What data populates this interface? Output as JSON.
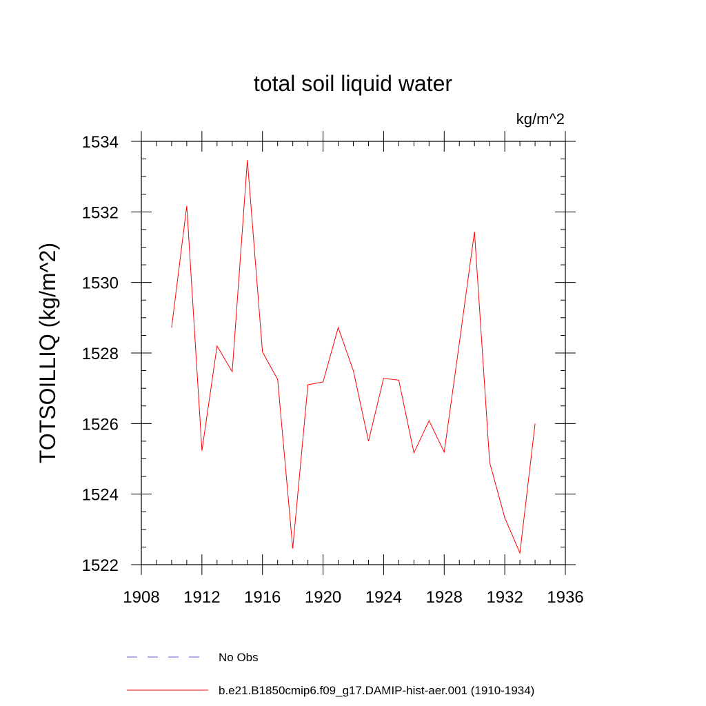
{
  "chart_data": {
    "type": "line",
    "title": "total soil liquid water",
    "units": "kg/m^2",
    "ylabel": "TOTSOILLIQ  (kg/m^2)",
    "xlabel": "",
    "xlim": [
      1908,
      1936
    ],
    "ylim": [
      1522,
      1534
    ],
    "x_ticks": [
      1908,
      1912,
      1916,
      1920,
      1924,
      1928,
      1932,
      1936
    ],
    "y_ticks": [
      1522,
      1524,
      1526,
      1528,
      1530,
      1532,
      1534
    ],
    "x_tick_labels": [
      "1908",
      "1912",
      "1916",
      "1920",
      "1924",
      "1928",
      "1932",
      "1936"
    ],
    "y_tick_labels": [
      "1522",
      "1524",
      "1526",
      "1528",
      "1530",
      "1532",
      "1534"
    ],
    "grid": false,
    "legend": {
      "placement": "bottom",
      "entries": [
        {
          "label": "No Obs",
          "color": "#6a5acd",
          "style": "dashed"
        },
        {
          "label": "b.e21.B1850cmip6.f09_g17.DAMIP-hist-aer.001 (1910-1934)",
          "color": "#ff0000",
          "style": "solid"
        }
      ]
    },
    "series": [
      {
        "color": "#ff0000",
        "x": [
          1910,
          1911,
          1912,
          1913,
          1914,
          1915,
          1916,
          1917,
          1918,
          1919,
          1920,
          1921,
          1922,
          1923,
          1924,
          1925,
          1926,
          1927,
          1928,
          1929,
          1930,
          1931,
          1932,
          1933,
          1934
        ],
        "values": [
          1528.72,
          1532.17,
          1525.23,
          1528.2,
          1527.47,
          1533.47,
          1528.03,
          1527.25,
          1522.46,
          1527.1,
          1527.18,
          1528.72,
          1527.5,
          1525.5,
          1527.28,
          1527.23,
          1525.17,
          1526.08,
          1525.19,
          1528.29,
          1531.44,
          1524.9,
          1523.33,
          1522.33,
          1526.0
        ]
      }
    ]
  }
}
